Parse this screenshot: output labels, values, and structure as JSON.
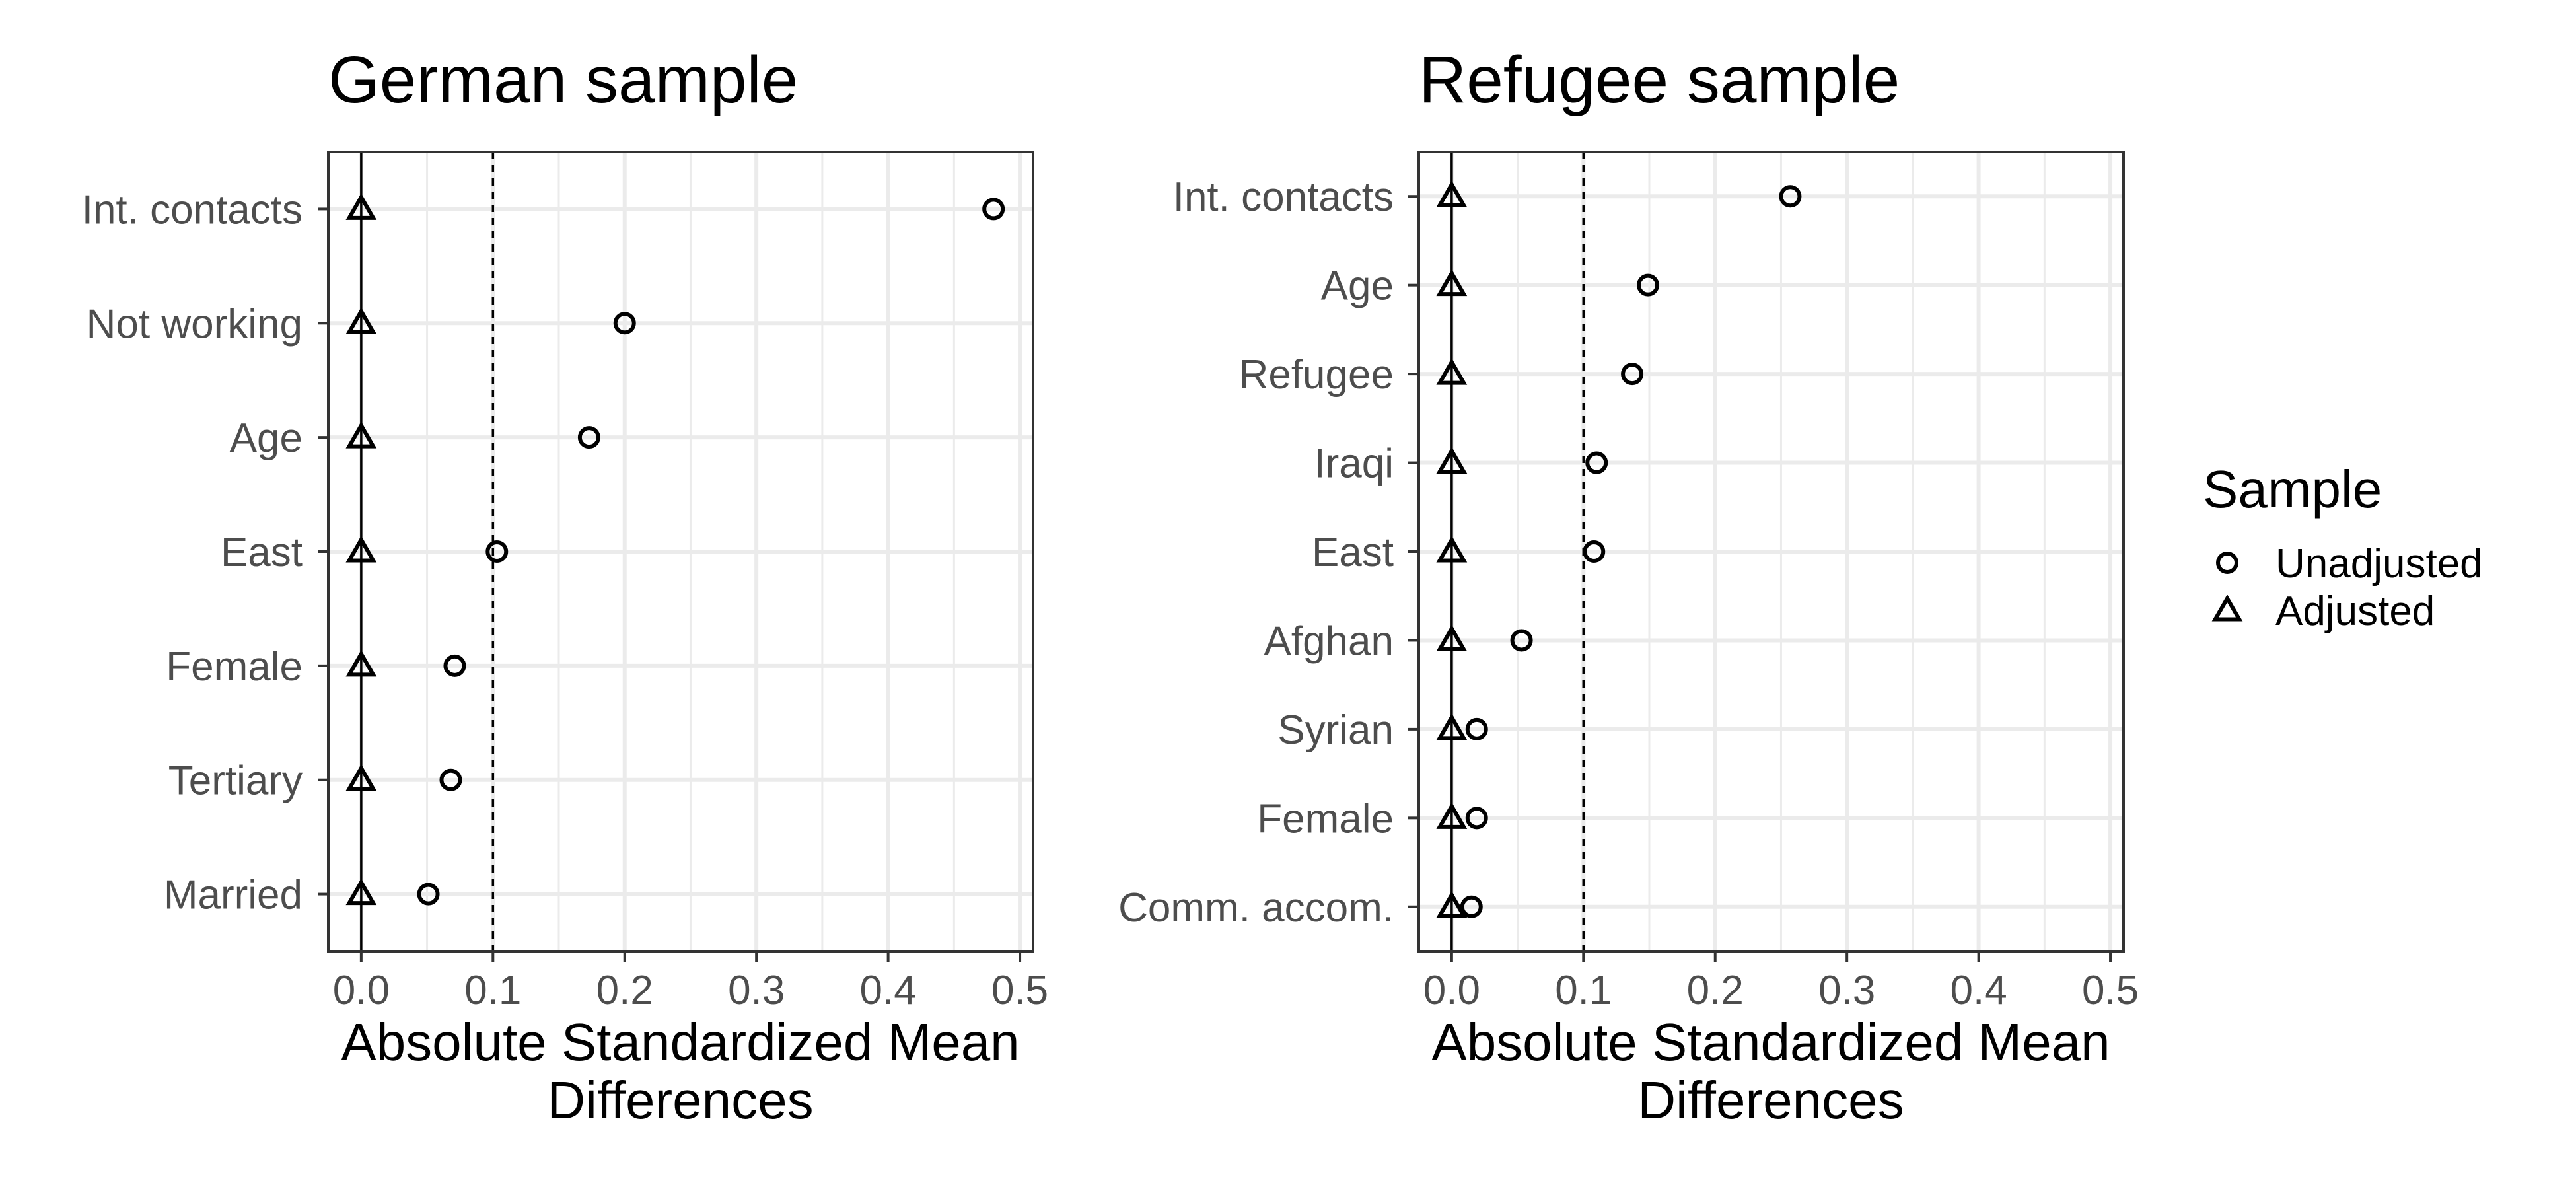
{
  "chart_data": [
    {
      "type": "scatter",
      "title": "German sample",
      "xlabel": "Absolute Standardized Mean Differences",
      "ylabel": "",
      "xlim": [
        -0.025,
        0.51
      ],
      "x_ticks": [
        "0.0",
        "0.1",
        "0.2",
        "0.3",
        "0.4",
        "0.5"
      ],
      "threshold": 0.1,
      "categories": [
        "Int. contacts",
        "Not working",
        "Age",
        "East",
        "Female",
        "Tertiary",
        "Married"
      ],
      "series": [
        {
          "name": "Unadjusted",
          "marker": "circle",
          "values": [
            0.48,
            0.2,
            0.173,
            0.103,
            0.071,
            0.068,
            0.051
          ]
        },
        {
          "name": "Adjusted",
          "marker": "triangle",
          "values": [
            0,
            0,
            0,
            0,
            0,
            0,
            0
          ]
        }
      ]
    },
    {
      "type": "scatter",
      "title": "Refugee sample",
      "xlabel": "Absolute Standardized Mean Differences",
      "ylabel": "",
      "xlim": [
        -0.025,
        0.51
      ],
      "x_ticks": [
        "0.0",
        "0.1",
        "0.2",
        "0.3",
        "0.4",
        "0.5"
      ],
      "threshold": 0.1,
      "categories": [
        "Int. contacts",
        "Age",
        "Refugee",
        "Iraqi",
        "East",
        "Afghan",
        "Syrian",
        "Female",
        "Comm. accom."
      ],
      "series": [
        {
          "name": "Unadjusted",
          "marker": "circle",
          "values": [
            0.257,
            0.149,
            0.137,
            0.11,
            0.108,
            0.053,
            0.019,
            0.019,
            0.015
          ]
        },
        {
          "name": "Adjusted",
          "marker": "triangle",
          "values": [
            0,
            0,
            0,
            0,
            0,
            0,
            0,
            0,
            0
          ]
        }
      ]
    }
  ],
  "legend": {
    "title": "Sample",
    "items": [
      {
        "label": "Unadjusted",
        "marker": "circle"
      },
      {
        "label": "Adjusted",
        "marker": "triangle"
      }
    ]
  }
}
